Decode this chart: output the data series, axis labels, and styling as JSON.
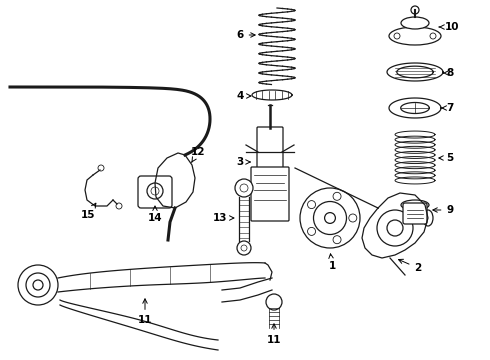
{
  "bg_color": "#ffffff",
  "line_color": "#1a1a1a",
  "label_color": "#000000",
  "figsize": [
    4.9,
    3.6
  ],
  "dpi": 100,
  "lw": 0.9
}
